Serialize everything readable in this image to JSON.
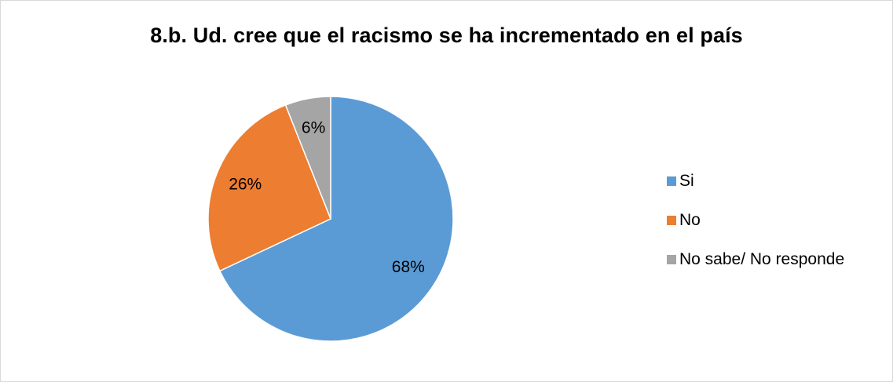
{
  "chart_data": {
    "type": "pie",
    "title": "8.b. Ud. cree que el racismo se ha incrementado en el país",
    "categories": [
      "Si",
      "No",
      "No sabe/ No responde"
    ],
    "values": [
      68,
      26,
      6
    ],
    "data_labels": [
      "68%",
      "26%",
      "6%"
    ],
    "colors": [
      "#5b9bd5",
      "#ed7d31",
      "#a5a5a5"
    ],
    "legend_position": "right",
    "start_angle": "12 o'clock",
    "direction": "clockwise"
  }
}
